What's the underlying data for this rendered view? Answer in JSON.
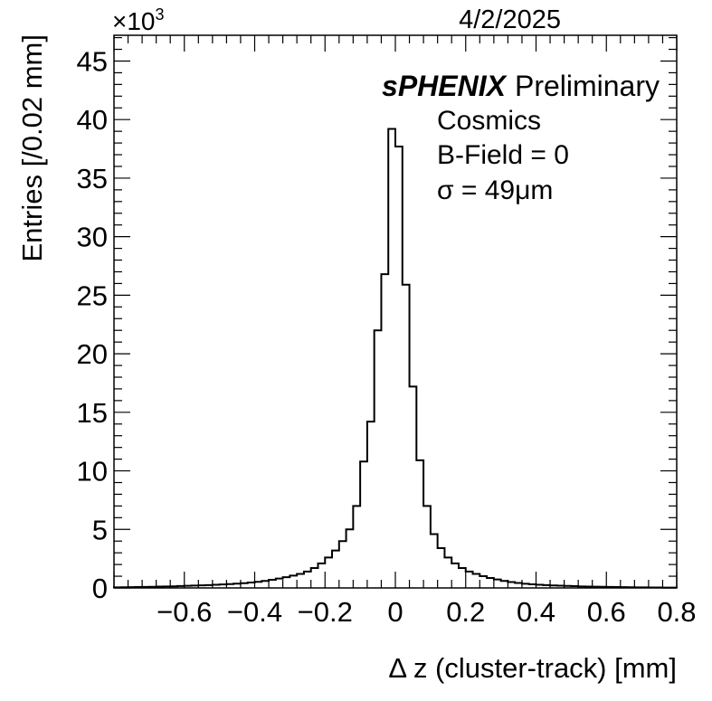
{
  "date": "4/2/2025",
  "annotation": {
    "experiment": "sPHENIX",
    "status": "Preliminary",
    "lines": [
      "Cosmics",
      "B-Field = 0",
      "σ = 49μm"
    ]
  },
  "chart_data": {
    "type": "histogram",
    "xlabel": "Δ z (cluster-track) [mm]",
    "ylabel": "Entries [/0.02 mm]",
    "y_multiplier": "×10",
    "y_multiplier_exponent": "3",
    "xlim": [
      -0.8,
      0.8
    ],
    "ylim": [
      0,
      47.2
    ],
    "bin_width": 0.02,
    "x_ticks": [
      -0.6,
      -0.4,
      -0.2,
      0,
      0.2,
      0.4,
      0.6,
      0.8
    ],
    "x_tick_labels": [
      "−0.6",
      "−0.4",
      "−0.2",
      "0",
      "0.2",
      "0.4",
      "0.6",
      "0.8"
    ],
    "y_ticks": [
      0,
      5,
      10,
      15,
      20,
      25,
      30,
      35,
      40,
      45
    ],
    "y_tick_labels": [
      "0",
      "5",
      "10",
      "15",
      "20",
      "25",
      "30",
      "35",
      "40",
      "45"
    ],
    "bin_low_edges": [
      -0.8,
      -0.78,
      -0.76,
      -0.74,
      -0.72,
      -0.7,
      -0.68,
      -0.66,
      -0.64,
      -0.62,
      -0.6,
      -0.58,
      -0.56,
      -0.54,
      -0.52,
      -0.5,
      -0.48,
      -0.46,
      -0.44,
      -0.42,
      -0.4,
      -0.38,
      -0.36,
      -0.34,
      -0.32,
      -0.3,
      -0.28,
      -0.26,
      -0.24,
      -0.22,
      -0.2,
      -0.18,
      -0.16,
      -0.14,
      -0.12,
      -0.1,
      -0.08,
      -0.06,
      -0.04,
      -0.02,
      0.0,
      0.02,
      0.04,
      0.06,
      0.08,
      0.1,
      0.12,
      0.14,
      0.16,
      0.18,
      0.2,
      0.22,
      0.24,
      0.26,
      0.28,
      0.3,
      0.32,
      0.34,
      0.36,
      0.38,
      0.4,
      0.42,
      0.44,
      0.46,
      0.48,
      0.5,
      0.52,
      0.54,
      0.56,
      0.58,
      0.6,
      0.62,
      0.64,
      0.66,
      0.68,
      0.7,
      0.72,
      0.74,
      0.76,
      0.78
    ],
    "values": [
      0.05,
      0.06,
      0.07,
      0.08,
      0.09,
      0.1,
      0.12,
      0.13,
      0.14,
      0.16,
      0.18,
      0.2,
      0.22,
      0.24,
      0.27,
      0.3,
      0.33,
      0.37,
      0.41,
      0.46,
      0.52,
      0.6,
      0.7,
      0.8,
      0.92,
      1.05,
      1.2,
      1.4,
      1.7,
      2.1,
      2.6,
      3.2,
      4.0,
      5.0,
      7.0,
      10.8,
      14.2,
      22.0,
      26.8,
      39.2,
      37.7,
      25.9,
      17.2,
      10.9,
      7.0,
      4.6,
      3.4,
      2.6,
      2.1,
      1.7,
      1.4,
      1.2,
      1.0,
      0.85,
      0.72,
      0.6,
      0.5,
      0.42,
      0.36,
      0.31,
      0.27,
      0.24,
      0.21,
      0.19,
      0.17,
      0.15,
      0.13,
      0.12,
      0.11,
      0.1,
      0.09,
      0.08,
      0.07,
      0.06,
      0.05,
      0.05,
      0.04,
      0.04,
      0.03,
      0.03
    ],
    "grid": false,
    "legend": "none"
  }
}
